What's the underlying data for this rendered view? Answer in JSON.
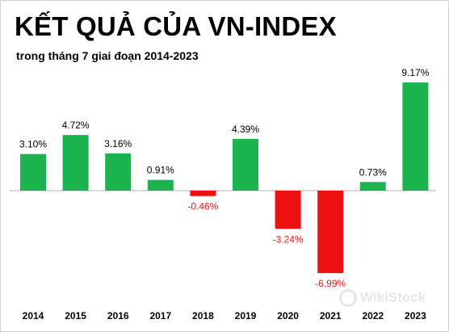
{
  "chart_data": {
    "type": "bar",
    "title": "KẾT QUẢ CỦA VN-INDEX",
    "subtitle": "trong tháng 7 giai đoạn 2014-2023",
    "categories": [
      "2014",
      "2015",
      "2016",
      "2017",
      "2018",
      "2019",
      "2020",
      "2021",
      "2022",
      "2023"
    ],
    "values": [
      3.1,
      4.72,
      3.16,
      0.91,
      -0.46,
      4.39,
      -3.24,
      -6.99,
      0.73,
      9.17
    ],
    "labels": [
      "3.10%",
      "4.72%",
      "3.16%",
      "0.91%",
      "-0.46%",
      "4.39%",
      "-3.24%",
      "-6.99%",
      "0.73%",
      "9.17%"
    ],
    "xlabel": "",
    "ylabel": "",
    "ylim": [
      -7.5,
      9.5
    ],
    "grid": false,
    "colors": {
      "positive": "#1db34e",
      "negative": "#ee1111",
      "negative_label": "#ee1111",
      "positive_label": "#000000"
    }
  },
  "watermark": {
    "text": "WikiStock"
  }
}
